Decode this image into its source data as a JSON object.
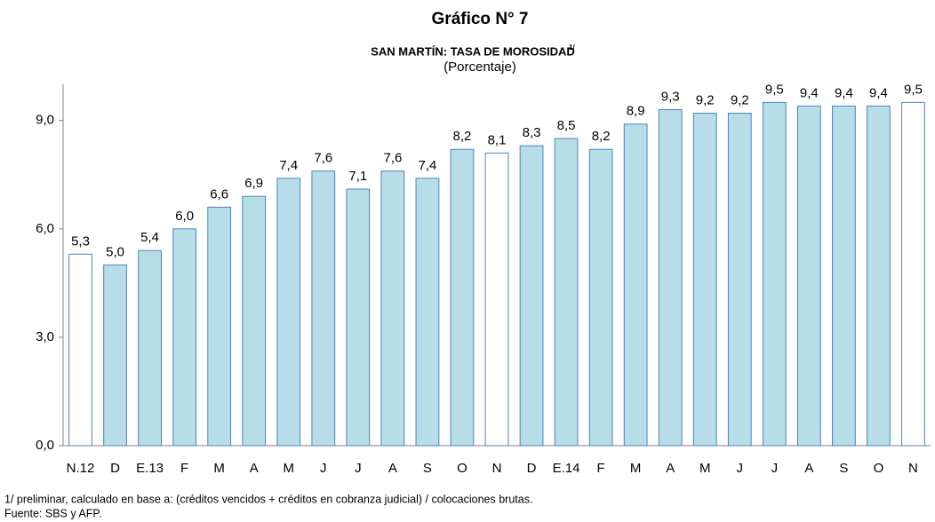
{
  "chart_data": {
    "type": "bar",
    "title": "Gráfico N° 7",
    "subtitle": "SAN MARTÍN: TASA DE MOROSIDAD",
    "subtitle_note": "1/",
    "y_label": "(Porcentaje)",
    "categories": [
      "N.12",
      "D",
      "E.13",
      "F",
      "M",
      "A",
      "M",
      "J",
      "J",
      "A",
      "S",
      "O",
      "N",
      "D",
      "E.14",
      "F",
      "M",
      "A",
      "M",
      "J",
      "J",
      "A",
      "S",
      "O",
      "N"
    ],
    "values": [
      5.3,
      5.0,
      5.4,
      6.0,
      6.6,
      6.9,
      7.4,
      7.6,
      7.1,
      7.6,
      7.4,
      8.2,
      8.1,
      8.3,
      8.5,
      8.2,
      8.9,
      9.3,
      9.2,
      9.2,
      9.5,
      9.4,
      9.4,
      9.4,
      9.5
    ],
    "value_labels": [
      "5,3",
      "5,0",
      "5,4",
      "6,0",
      "6,6",
      "6,9",
      "7,4",
      "7,6",
      "7,1",
      "7,6",
      "7,4",
      "8,2",
      "8,1",
      "8,3",
      "8,5",
      "8,2",
      "8,9",
      "9,3",
      "9,2",
      "9,2",
      "9,5",
      "9,4",
      "9,4",
      "9,4",
      "9,5"
    ],
    "colors": [
      "#ffffff",
      "#b7dde8",
      "#b7dde8",
      "#b7dde8",
      "#b7dde8",
      "#b7dde8",
      "#b7dde8",
      "#b7dde8",
      "#b7dde8",
      "#b7dde8",
      "#b7dde8",
      "#b7dde8",
      "#ffffff",
      "#b7dde8",
      "#b7dde8",
      "#b7dde8",
      "#b7dde8",
      "#b7dde8",
      "#b7dde8",
      "#b7dde8",
      "#b7dde8",
      "#b7dde8",
      "#b7dde8",
      "#b7dde8",
      "#ffffff"
    ],
    "edge_color": "#4f81bd",
    "ylim": [
      0,
      10
    ],
    "yticks": [
      {
        "value": 0,
        "label": "0,0"
      },
      {
        "value": 3,
        "label": "3,0"
      },
      {
        "value": 6,
        "label": "6,0"
      },
      {
        "value": 9,
        "label": "9,0"
      }
    ],
    "grid": false,
    "footnotes": [
      "1/ preliminar, calculado en base a: (créditos vencidos + créditos en cobranza judicial) / colocaciones brutas.",
      "Fuente: SBS y AFP."
    ]
  }
}
